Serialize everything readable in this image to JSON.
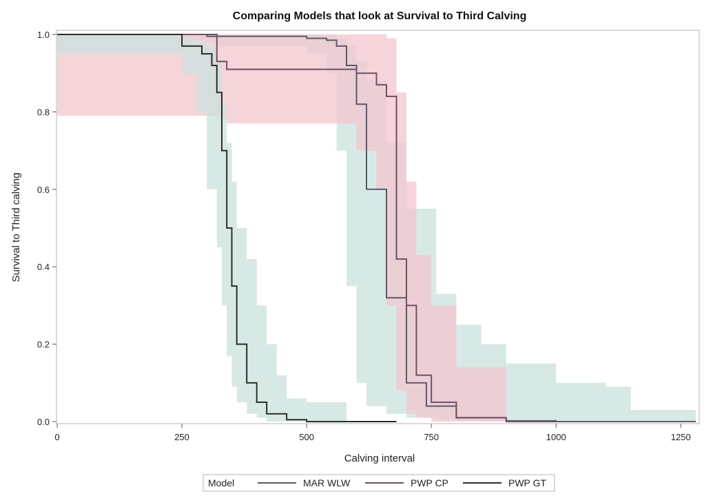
{
  "chart_data": {
    "type": "line",
    "title": "Comparing Models that look at Survival to Third Calving",
    "xlabel": "Calving interval",
    "ylabel": "Survival to Third calving",
    "xlim": [
      0,
      1280
    ],
    "ylim": [
      0,
      1.0
    ],
    "xticks": [
      0,
      250,
      500,
      750,
      1000,
      1250
    ],
    "yticks": [
      0.0,
      0.2,
      0.4,
      0.6,
      0.8,
      1.0
    ],
    "xtick_labels": [
      "0",
      "250",
      "500",
      "750",
      "1000",
      "1250"
    ],
    "ytick_labels": [
      "0.0",
      "0.2",
      "0.4",
      "0.6",
      "0.8",
      "1.0"
    ],
    "grid": false,
    "legend": {
      "position": "bottom",
      "title": "Model",
      "entries": [
        "MAR WLW",
        "PWP CP",
        "PWP GT"
      ]
    },
    "series": [
      {
        "name": "MAR WLW",
        "color": "#5a5a68",
        "band_color": "#c9e1dc",
        "x": [
          0,
          300,
          320,
          500,
          540,
          560,
          580,
          600,
          620,
          660,
          700,
          740,
          800,
          900,
          1000,
          1280
        ],
        "y": [
          1.0,
          0.995,
          0.995,
          0.99,
          0.985,
          0.97,
          0.92,
          0.82,
          0.6,
          0.32,
          0.1,
          0.04,
          0.01,
          0.002,
          0.0,
          0.0
        ],
        "band_x": [
          0,
          250,
          300,
          320,
          500,
          540,
          560,
          580,
          600,
          620,
          660,
          700,
          760,
          800,
          850,
          900,
          1000,
          1100,
          1150,
          1280
        ],
        "band_upper": [
          1.0,
          1.0,
          1.0,
          1.0,
          1.0,
          1.0,
          0.99,
          0.97,
          0.93,
          0.88,
          0.72,
          0.55,
          0.33,
          0.25,
          0.2,
          0.15,
          0.1,
          0.09,
          0.03,
          0.01
        ],
        "band_lower": [
          1.0,
          0.99,
          0.985,
          0.98,
          0.97,
          0.95,
          0.9,
          0.7,
          0.35,
          0.1,
          0.04,
          0.02,
          0.01,
          0.005,
          0.002,
          0.0,
          0.0,
          0.0,
          0.0,
          0.0
        ]
      },
      {
        "name": "PWP CP",
        "color": "#6e4e66",
        "band_color": "#f1c5cd",
        "x": [
          0,
          320,
          340,
          600,
          640,
          660,
          680,
          700,
          720,
          750,
          800,
          900,
          1000
        ],
        "y": [
          1.0,
          0.93,
          0.91,
          0.9,
          0.87,
          0.84,
          0.42,
          0.3,
          0.12,
          0.05,
          0.01,
          0.0,
          0.0
        ],
        "band_x": [
          0,
          320,
          340,
          600,
          640,
          660,
          680,
          700,
          720,
          750,
          800,
          900
        ],
        "band_upper": [
          1.0,
          1.0,
          1.0,
          1.0,
          1.0,
          0.99,
          0.85,
          0.62,
          0.43,
          0.3,
          0.14,
          0.04
        ],
        "band_lower": [
          1.0,
          0.79,
          0.78,
          0.77,
          0.7,
          0.6,
          0.3,
          0.08,
          0.02,
          0.01,
          0.0,
          0.0
        ]
      },
      {
        "name": "PWP GT",
        "color": "#2b2b2b",
        "band_color": "#c9e1dc",
        "x": [
          0,
          250,
          290,
          310,
          320,
          330,
          340,
          350,
          360,
          380,
          400,
          420,
          460,
          500,
          580,
          680
        ],
        "y": [
          1.0,
          0.97,
          0.95,
          0.92,
          0.85,
          0.7,
          0.5,
          0.35,
          0.2,
          0.1,
          0.05,
          0.02,
          0.005,
          0.0,
          0.0,
          0.0
        ],
        "band_x": [
          0,
          250,
          280,
          300,
          320,
          330,
          340,
          350,
          360,
          380,
          400,
          420,
          440,
          460,
          500,
          580
        ],
        "band_upper": [
          1.0,
          0.99,
          0.98,
          0.97,
          0.93,
          0.82,
          0.72,
          0.62,
          0.5,
          0.42,
          0.3,
          0.2,
          0.12,
          0.06,
          0.05,
          0.0
        ],
        "band_lower": [
          1.0,
          0.95,
          0.9,
          0.8,
          0.6,
          0.45,
          0.3,
          0.17,
          0.09,
          0.05,
          0.02,
          0.01,
          0.0,
          0.0,
          0.0,
          0.0
        ]
      }
    ]
  }
}
